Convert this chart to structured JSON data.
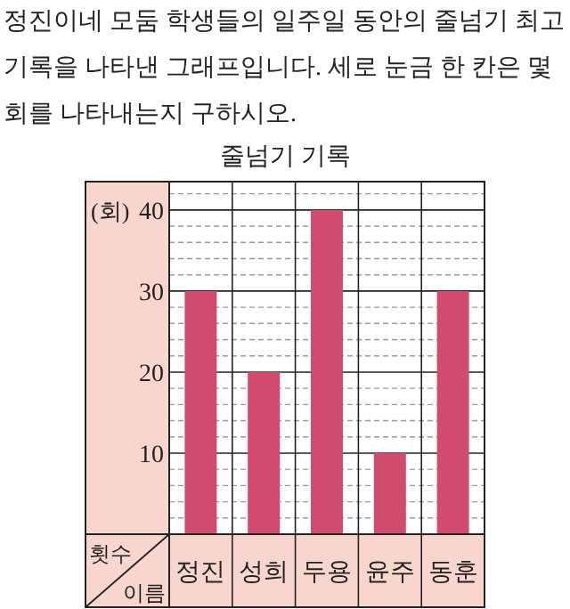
{
  "chart_data": {
    "type": "bar",
    "title": "줄넘기 기록",
    "annotations": [
      "정진이네 모둠 학생들의 일주일 동안의 줄넘기 최고 기록을 나타낸 그래프입니다. 세로 눈금 한 칸은 몇 회를 나타내는지 구하시오.",
      "횟수"
    ],
    "xlabel": "이름",
    "ylabel": "(회)",
    "categories": [
      "정진",
      "성희",
      "두용",
      "윤주",
      "동훈"
    ],
    "values": [
      30,
      20,
      40,
      10,
      30
    ],
    "color": "#d14b6d",
    "ylim": [
      0,
      43.5
    ],
    "yticks": [
      10,
      20,
      30,
      40
    ],
    "grid": "y"
  }
}
